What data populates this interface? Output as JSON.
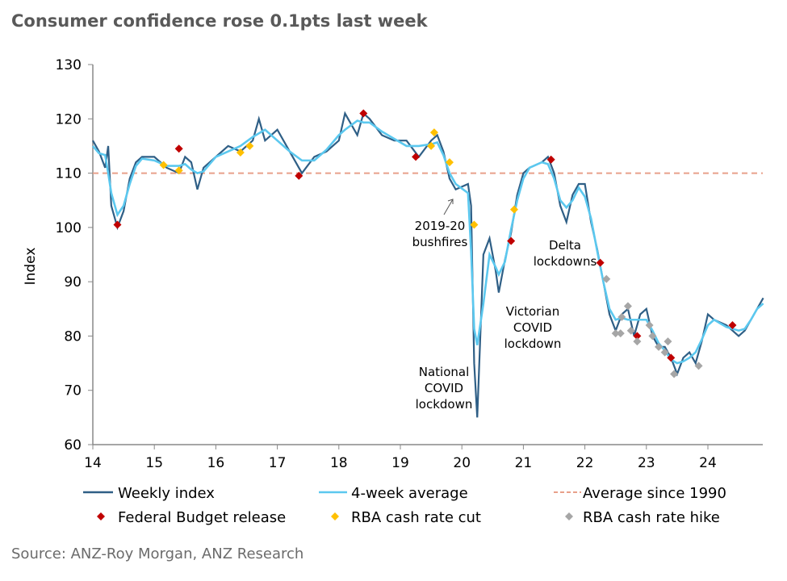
{
  "title": "Consumer confidence rose 0.1pts last week",
  "source": "Source: ANZ-Roy Morgan, ANZ Research",
  "chart_data": {
    "type": "line",
    "title": "Consumer confidence rose 0.1pts last week",
    "ylabel": "Index",
    "xlabel": "",
    "xlim": [
      14,
      24.9
    ],
    "ylim": [
      60,
      130
    ],
    "x_ticks": [
      "14",
      "15",
      "16",
      "17",
      "18",
      "19",
      "20",
      "21",
      "22",
      "23",
      "24"
    ],
    "y_ticks": [
      "60",
      "70",
      "80",
      "90",
      "100",
      "110",
      "120",
      "130"
    ],
    "grid": false,
    "legend": "bottom",
    "colors": {
      "weekly": "#2f5f86",
      "avg": "#5bc8ef",
      "average_line": "#e8a08a",
      "budget": "#c00000",
      "cut": "#ffc000",
      "hike": "#a6a6a6"
    },
    "series": [
      {
        "name": "Weekly index",
        "x": [
          14.0,
          14.1,
          14.2,
          14.25,
          14.3,
          14.4,
          14.5,
          14.6,
          14.7,
          14.8,
          15.0,
          15.2,
          15.4,
          15.5,
          15.6,
          15.7,
          15.8,
          16.0,
          16.2,
          16.4,
          16.6,
          16.7,
          16.8,
          17.0,
          17.2,
          17.4,
          17.6,
          17.8,
          18.0,
          18.1,
          18.3,
          18.4,
          18.5,
          18.7,
          18.9,
          19.1,
          19.3,
          19.5,
          19.6,
          19.7,
          19.8,
          19.9,
          20.1,
          20.15,
          20.2,
          20.25,
          20.35,
          20.45,
          20.55,
          20.6,
          20.7,
          20.8,
          20.9,
          21.0,
          21.1,
          21.3,
          21.4,
          21.5,
          21.6,
          21.7,
          21.8,
          21.9,
          22.0,
          22.1,
          22.2,
          22.3,
          22.4,
          22.5,
          22.6,
          22.7,
          22.8,
          22.9,
          23.0,
          23.1,
          23.2,
          23.3,
          23.4,
          23.5,
          23.6,
          23.7,
          23.8,
          23.9,
          24.0,
          24.1,
          24.3,
          24.5,
          24.6,
          24.7,
          24.8,
          24.9
        ],
        "y": [
          116,
          114,
          111,
          115,
          104,
          100,
          103,
          109,
          112,
          113,
          113,
          111,
          110,
          113,
          112,
          107,
          111,
          113,
          115,
          114,
          116,
          120,
          116,
          118,
          114,
          110,
          113,
          114,
          116,
          121,
          117,
          121,
          120,
          117,
          116,
          116,
          113,
          116,
          117,
          114,
          109,
          107,
          108,
          104,
          75,
          65,
          95,
          98,
          92,
          88,
          94,
          99,
          106,
          110,
          111,
          112,
          113,
          110,
          104,
          101,
          106,
          108,
          108,
          101,
          96,
          90,
          84,
          81,
          84,
          85,
          80,
          84,
          85,
          80,
          78,
          78,
          76,
          73,
          76,
          77,
          75,
          79,
          84,
          83,
          82,
          80,
          81,
          83,
          85,
          87
        ]
      },
      {
        "name": "4-week average"
      },
      {
        "name": "Average since 1990",
        "value": 110
      }
    ],
    "markers": [
      {
        "name": "Federal Budget release",
        "points": [
          [
            14.4,
            100.5
          ],
          [
            15.4,
            114.5
          ],
          [
            17.35,
            109.5
          ],
          [
            18.4,
            121
          ],
          [
            19.25,
            113
          ],
          [
            20.8,
            97.5
          ],
          [
            21.45,
            112.5
          ],
          [
            22.25,
            93.5
          ],
          [
            22.85,
            80
          ],
          [
            23.4,
            76
          ],
          [
            24.4,
            82
          ]
        ]
      },
      {
        "name": "RBA cash rate cut",
        "points": [
          [
            15.15,
            111.5
          ],
          [
            15.4,
            110.5
          ],
          [
            16.4,
            113.8
          ],
          [
            16.55,
            115
          ],
          [
            19.5,
            115
          ],
          [
            19.55,
            117.5
          ],
          [
            19.8,
            112
          ],
          [
            20.2,
            100.5
          ],
          [
            20.85,
            103.3
          ]
        ]
      },
      {
        "name": "RBA cash rate hike",
        "points": [
          [
            22.35,
            90.5
          ],
          [
            22.5,
            80.5
          ],
          [
            22.58,
            80.5
          ],
          [
            22.6,
            83.5
          ],
          [
            22.7,
            85.5
          ],
          [
            22.75,
            81
          ],
          [
            22.85,
            79
          ],
          [
            23.05,
            82
          ],
          [
            23.1,
            80
          ],
          [
            23.2,
            78
          ],
          [
            23.3,
            77
          ],
          [
            23.35,
            79
          ],
          [
            23.45,
            73
          ],
          [
            23.85,
            74.5
          ]
        ]
      }
    ],
    "annotations": [
      {
        "lines": [
          "2019-20",
          "bushfires"
        ]
      },
      {
        "lines": [
          "National",
          "COVID",
          "lockdown"
        ]
      },
      {
        "lines": [
          "Victorian",
          "COVID",
          "lockdown"
        ]
      },
      {
        "lines": [
          "Delta",
          "lockdowns"
        ]
      }
    ]
  }
}
